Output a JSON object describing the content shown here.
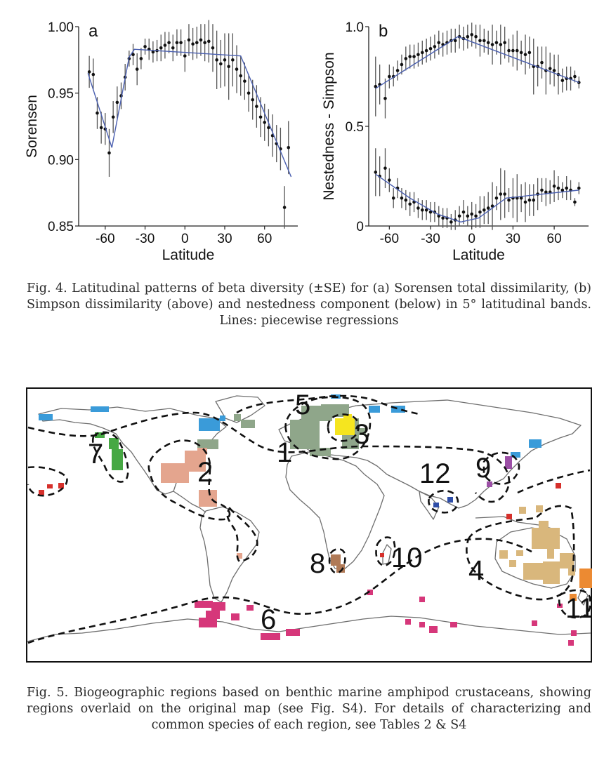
{
  "figure4": {
    "caption": "Fig. 4. Latitudinal patterns of beta diversity (±SE) for (a) Sorensen total dissimilarity, (b) Simpson dissimilarity (above) and nestedness component (below) in 5° latitudinal bands. Lines: piecewise regressions"
  },
  "figure5": {
    "caption": "Fig. 5. Biogeographic regions based on benthic marine amphipod crustaceans, showing regions overlaid on the original map (see Fig. S4). For details of characterizing and common species of each region, see Tables 2 & S4",
    "region_numbers": [
      "1",
      "2",
      "3",
      "4",
      "5",
      "6",
      "7",
      "8",
      "9",
      "10",
      "11",
      "12"
    ],
    "colors": {
      "blue": "#3a9bd9",
      "grayGreen": "#8fa68a",
      "yellow": "#f5e51f",
      "salmon": "#e4a58e",
      "green": "#46a843",
      "red": "#d6302b",
      "sand": "#d9b77c",
      "orange": "#ec8a32",
      "magenta": "#d6377a",
      "brown": "#b07a57",
      "purple": "#9c4fa6",
      "navy": "#2f4ea8"
    }
  },
  "chart_data": [
    {
      "panel_label": "a",
      "type": "scatter",
      "xlabel": "Latitude",
      "ylabel": "Sorensen",
      "xticks": [
        "-60",
        "-30",
        "0",
        "30",
        "60"
      ],
      "yticks": [
        "0.85",
        "0.90",
        "0.95",
        "1.00"
      ],
      "ylim": [
        0.85,
        1.0
      ],
      "xlim": [
        -80,
        85
      ],
      "series": [
        {
          "x": [
            -72,
            -69,
            -66,
            -63,
            -60,
            -57,
            -54,
            -51,
            -48,
            -45,
            -42,
            -39,
            -36,
            -33,
            -30,
            -27,
            -24,
            -21,
            -18,
            -15,
            -12,
            -9,
            -6,
            -3,
            0,
            3,
            6,
            9,
            12,
            15,
            18,
            21,
            24,
            27,
            30,
            33,
            36,
            39,
            42,
            45,
            48,
            51,
            54,
            57,
            60,
            63,
            66,
            69,
            72,
            75,
            78
          ],
          "y": [
            0.966,
            0.964,
            0.935,
            0.924,
            0.923,
            0.905,
            0.932,
            0.943,
            0.948,
            0.962,
            0.976,
            0.979,
            0.968,
            0.976,
            0.985,
            0.983,
            0.981,
            0.982,
            0.984,
            0.986,
            0.988,
            0.984,
            0.988,
            0.988,
            0.978,
            0.99,
            0.987,
            0.988,
            0.99,
            0.988,
            0.989,
            0.984,
            0.975,
            0.972,
            0.975,
            0.97,
            0.975,
            0.968,
            0.963,
            0.959,
            0.95,
            0.945,
            0.94,
            0.932,
            0.928,
            0.924,
            0.918,
            0.912,
            0.908,
            0.864,
            0.909
          ],
          "se": [
            0.012,
            0.012,
            0.012,
            0.012,
            0.012,
            0.018,
            0.012,
            0.012,
            0.01,
            0.01,
            0.006,
            0.008,
            0.012,
            0.008,
            0.006,
            0.008,
            0.008,
            0.008,
            0.01,
            0.01,
            0.008,
            0.01,
            0.01,
            0.01,
            0.012,
            0.012,
            0.012,
            0.012,
            0.012,
            0.014,
            0.016,
            0.018,
            0.022,
            0.018,
            0.02,
            0.025,
            0.02,
            0.018,
            0.015,
            0.014,
            0.014,
            0.015,
            0.016,
            0.015,
            0.014,
            0.014,
            0.016,
            0.014,
            0.016,
            0.016,
            0.02
          ]
        }
      ],
      "regression": {
        "x": [
          -73,
          -55,
          -42,
          -38,
          42,
          80
        ],
        "y": [
          0.965,
          0.909,
          0.977,
          0.983,
          0.978,
          0.887
        ]
      }
    },
    {
      "panel_label": "b",
      "type": "scatter",
      "xlabel": "Latitude",
      "ylabel": "Nestedness - Simpson",
      "xticks": [
        "-60",
        "-30",
        "0",
        "30",
        "60"
      ],
      "yticks": [
        "0",
        "0.5",
        "1.0"
      ],
      "ylim": [
        0,
        1.0
      ],
      "xlim": [
        -75,
        85
      ],
      "series": [
        {
          "name": "Simpson dissimilarity",
          "x": [
            -70,
            -67,
            -63,
            -60,
            -57,
            -54,
            -51,
            -48,
            -45,
            -42,
            -39,
            -36,
            -33,
            -30,
            -27,
            -24,
            -21,
            -18,
            -15,
            -12,
            -9,
            -6,
            -3,
            0,
            3,
            6,
            9,
            12,
            15,
            18,
            21,
            24,
            27,
            30,
            33,
            36,
            39,
            42,
            45,
            48,
            51,
            54,
            57,
            60,
            63,
            66,
            69,
            72,
            75,
            78
          ],
          "y": [
            0.7,
            0.71,
            0.64,
            0.75,
            0.75,
            0.78,
            0.81,
            0.84,
            0.85,
            0.85,
            0.86,
            0.87,
            0.88,
            0.89,
            0.9,
            0.92,
            0.91,
            0.92,
            0.93,
            0.93,
            0.95,
            0.94,
            0.95,
            0.96,
            0.95,
            0.93,
            0.93,
            0.92,
            0.91,
            0.92,
            0.91,
            0.92,
            0.88,
            0.88,
            0.88,
            0.87,
            0.86,
            0.87,
            0.8,
            0.8,
            0.82,
            0.78,
            0.79,
            0.78,
            0.76,
            0.73,
            0.74,
            0.74,
            0.75,
            0.72
          ],
          "se": [
            0.15,
            0.1,
            0.1,
            0.06,
            0.05,
            0.05,
            0.05,
            0.06,
            0.06,
            0.06,
            0.06,
            0.06,
            0.06,
            0.06,
            0.06,
            0.06,
            0.06,
            0.06,
            0.06,
            0.06,
            0.06,
            0.06,
            0.06,
            0.06,
            0.06,
            0.08,
            0.06,
            0.06,
            0.1,
            0.06,
            0.1,
            0.08,
            0.06,
            0.08,
            0.1,
            0.06,
            0.1,
            0.08,
            0.14,
            0.1,
            0.08,
            0.12,
            0.08,
            0.08,
            0.1,
            0.06,
            0.06,
            0.06,
            0.03,
            0.03
          ]
        },
        {
          "name": "Nestedness component",
          "x": [
            -70,
            -67,
            -63,
            -60,
            -57,
            -54,
            -51,
            -48,
            -45,
            -42,
            -39,
            -36,
            -33,
            -30,
            -27,
            -24,
            -21,
            -18,
            -15,
            -12,
            -9,
            -6,
            -3,
            0,
            3,
            6,
            9,
            12,
            15,
            18,
            21,
            24,
            27,
            30,
            33,
            36,
            39,
            42,
            45,
            48,
            51,
            54,
            57,
            60,
            63,
            66,
            69,
            72,
            75,
            78
          ],
          "y": [
            0.27,
            0.25,
            0.29,
            0.23,
            0.14,
            0.19,
            0.14,
            0.13,
            0.11,
            0.12,
            0.09,
            0.08,
            0.08,
            0.07,
            0.07,
            0.05,
            0.04,
            0.04,
            0.02,
            0.03,
            0.05,
            0.07,
            0.05,
            0.06,
            0.05,
            0.07,
            0.08,
            0.09,
            0.1,
            0.14,
            0.16,
            0.16,
            0.13,
            0.14,
            0.14,
            0.14,
            0.12,
            0.13,
            0.13,
            0.16,
            0.18,
            0.17,
            0.17,
            0.2,
            0.19,
            0.18,
            0.19,
            0.18,
            0.12,
            0.19
          ],
          "se": [
            0.12,
            0.1,
            0.1,
            0.06,
            0.05,
            0.05,
            0.05,
            0.05,
            0.06,
            0.05,
            0.05,
            0.05,
            0.05,
            0.05,
            0.05,
            0.05,
            0.05,
            0.05,
            0.04,
            0.05,
            0.05,
            0.06,
            0.05,
            0.06,
            0.06,
            0.08,
            0.07,
            0.08,
            0.12,
            0.06,
            0.13,
            0.12,
            0.06,
            0.1,
            0.12,
            0.07,
            0.1,
            0.08,
            0.08,
            0.08,
            0.06,
            0.07,
            0.06,
            0.08,
            0.06,
            0.04,
            0.06,
            0.05,
            0.02,
            0.03
          ]
        }
      ],
      "regressions": [
        {
          "x": [
            -70,
            -10,
            78
          ],
          "y": [
            0.69,
            0.95,
            0.72
          ]
        },
        {
          "x": [
            -70,
            -45,
            -25,
            -8,
            5,
            15,
            25,
            78
          ],
          "y": [
            0.26,
            0.14,
            0.06,
            0.02,
            0.04,
            0.09,
            0.14,
            0.18
          ]
        }
      ]
    }
  ]
}
